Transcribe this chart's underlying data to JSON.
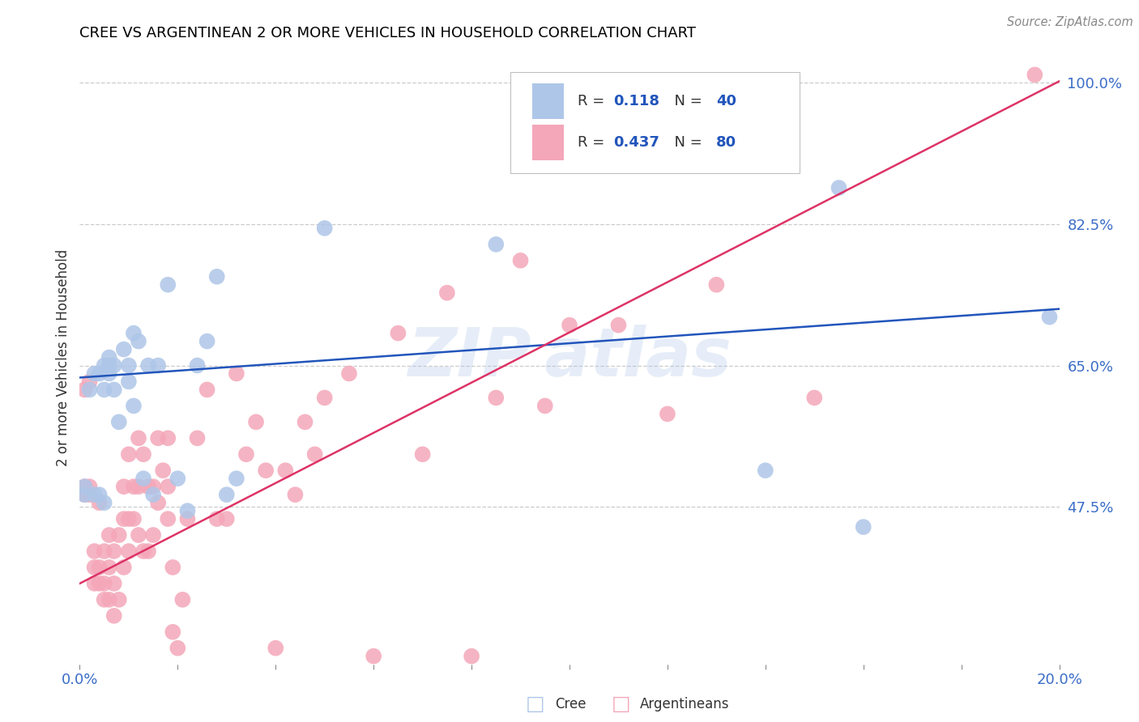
{
  "title": "CREE VS ARGENTINEAN 2 OR MORE VEHICLES IN HOUSEHOLD CORRELATION CHART",
  "source": "Source: ZipAtlas.com",
  "ylabel": "2 or more Vehicles in Household",
  "xlim": [
    0.0,
    0.2
  ],
  "ylim": [
    0.28,
    1.04
  ],
  "xticks": [
    0.0,
    0.02,
    0.04,
    0.06,
    0.08,
    0.1,
    0.12,
    0.14,
    0.16,
    0.18,
    0.2
  ],
  "ytick_positions": [
    0.475,
    0.65,
    0.825,
    1.0
  ],
  "ytick_labels": [
    "47.5%",
    "65.0%",
    "82.5%",
    "100.0%"
  ],
  "cree_color": "#aec6e8",
  "arg_color": "#f4a7b9",
  "cree_line_color": "#2255bb",
  "arg_line_color": "#dd3366",
  "legend_R_cree": "0.118",
  "legend_N_cree": "40",
  "legend_R_arg": "0.437",
  "legend_N_arg": "80",
  "background_color": "#ffffff",
  "grid_color": "#cccccc",
  "cree_x": [
    0.001,
    0.001,
    0.002,
    0.003,
    0.003,
    0.004,
    0.004,
    0.005,
    0.005,
    0.005,
    0.006,
    0.006,
    0.006,
    0.007,
    0.007,
    0.008,
    0.009,
    0.01,
    0.01,
    0.011,
    0.011,
    0.012,
    0.013,
    0.014,
    0.015,
    0.016,
    0.018,
    0.02,
    0.022,
    0.024,
    0.026,
    0.028,
    0.03,
    0.032,
    0.05,
    0.085,
    0.14,
    0.155,
    0.16,
    0.198
  ],
  "cree_y": [
    0.49,
    0.5,
    0.62,
    0.49,
    0.64,
    0.49,
    0.64,
    0.48,
    0.62,
    0.65,
    0.64,
    0.65,
    0.66,
    0.62,
    0.65,
    0.58,
    0.67,
    0.63,
    0.65,
    0.6,
    0.69,
    0.68,
    0.51,
    0.65,
    0.49,
    0.65,
    0.75,
    0.51,
    0.47,
    0.65,
    0.68,
    0.76,
    0.49,
    0.51,
    0.82,
    0.8,
    0.52,
    0.87,
    0.45,
    0.71
  ],
  "arg_x": [
    0.001,
    0.001,
    0.001,
    0.002,
    0.002,
    0.002,
    0.003,
    0.003,
    0.003,
    0.004,
    0.004,
    0.004,
    0.005,
    0.005,
    0.005,
    0.006,
    0.006,
    0.006,
    0.007,
    0.007,
    0.007,
    0.008,
    0.008,
    0.009,
    0.009,
    0.009,
    0.01,
    0.01,
    0.01,
    0.011,
    0.011,
    0.012,
    0.012,
    0.012,
    0.013,
    0.013,
    0.014,
    0.014,
    0.015,
    0.015,
    0.016,
    0.016,
    0.017,
    0.018,
    0.018,
    0.018,
    0.019,
    0.019,
    0.02,
    0.021,
    0.022,
    0.024,
    0.026,
    0.028,
    0.03,
    0.032,
    0.034,
    0.036,
    0.038,
    0.04,
    0.042,
    0.044,
    0.046,
    0.048,
    0.05,
    0.055,
    0.06,
    0.065,
    0.07,
    0.075,
    0.08,
    0.085,
    0.09,
    0.095,
    0.1,
    0.11,
    0.12,
    0.13,
    0.15,
    0.195
  ],
  "arg_y": [
    0.62,
    0.49,
    0.5,
    0.49,
    0.5,
    0.63,
    0.38,
    0.4,
    0.42,
    0.38,
    0.4,
    0.48,
    0.36,
    0.38,
    0.42,
    0.36,
    0.4,
    0.44,
    0.34,
    0.38,
    0.42,
    0.36,
    0.44,
    0.4,
    0.46,
    0.5,
    0.42,
    0.46,
    0.54,
    0.46,
    0.5,
    0.44,
    0.5,
    0.56,
    0.42,
    0.54,
    0.42,
    0.5,
    0.44,
    0.5,
    0.48,
    0.56,
    0.52,
    0.46,
    0.5,
    0.56,
    0.4,
    0.32,
    0.3,
    0.36,
    0.46,
    0.56,
    0.62,
    0.46,
    0.46,
    0.64,
    0.54,
    0.58,
    0.52,
    0.3,
    0.52,
    0.49,
    0.58,
    0.54,
    0.61,
    0.64,
    0.29,
    0.69,
    0.54,
    0.74,
    0.29,
    0.61,
    0.78,
    0.6,
    0.7,
    0.7,
    0.59,
    0.75,
    0.61,
    1.01
  ],
  "cree_trend_x": [
    0.0,
    0.2
  ],
  "cree_trend_y": [
    0.635,
    0.72
  ],
  "arg_trend_x": [
    0.0,
    0.2
  ],
  "arg_trend_y": [
    0.38,
    1.002
  ]
}
